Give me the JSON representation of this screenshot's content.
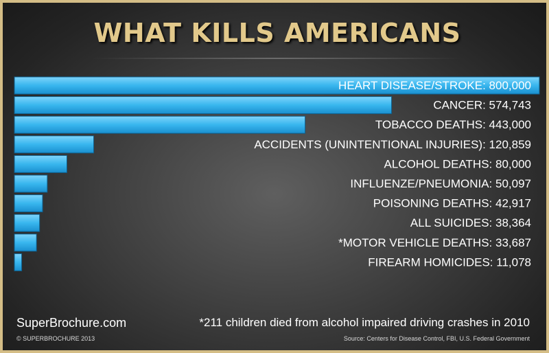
{
  "title": "WHAT KILLS AMERICANS",
  "site": "SuperBrochure.com",
  "copyright": "© SUPERBROCHURE 2013",
  "footnote": "*211 children died from alcohol impaired driving crashes in 2010",
  "source": "Source: Centers for Disease Control, FBI, U.S. Federal Government",
  "colors": {
    "bar": "#38b6ee",
    "title": "#e2c98b",
    "frame": "#d4bd86"
  },
  "chart_data": {
    "type": "bar",
    "orientation": "horizontal",
    "categories": [
      "HEART DISEASE/STROKE",
      "CANCER",
      "TOBACCO DEATHS",
      "ACCIDENTS (UNINTENTIONAL INJURIES)",
      "ALCOHOL DEATHS",
      "INFLUENZE/PNEUMONIA",
      "POISONING DEATHS",
      "ALL SUICIDES",
      "*MOTOR VEHICLE DEATHS",
      "FIREARM HOMICIDES"
    ],
    "values": [
      800000,
      574743,
      443000,
      120859,
      80000,
      50097,
      42917,
      38364,
      33687,
      11078
    ],
    "labels": [
      "HEART DISEASE/STROKE: 800,000",
      "CANCER: 574,743",
      "TOBACCO DEATHS: 443,000",
      "ACCIDENTS (UNINTENTIONAL INJURIES): 120,859",
      "ALCOHOL DEATHS: 80,000",
      "INFLUENZE/PNEUMONIA: 50,097",
      "POISONING DEATHS: 42,917",
      "ALL SUICIDES: 38,364",
      "*MOTOR VEHICLE DEATHS: 33,687",
      "FIREARM HOMICIDES: 11,078"
    ],
    "title": "WHAT KILLS AMERICANS",
    "xlabel": "",
    "ylabel": "",
    "grid": false,
    "legend": "none"
  }
}
